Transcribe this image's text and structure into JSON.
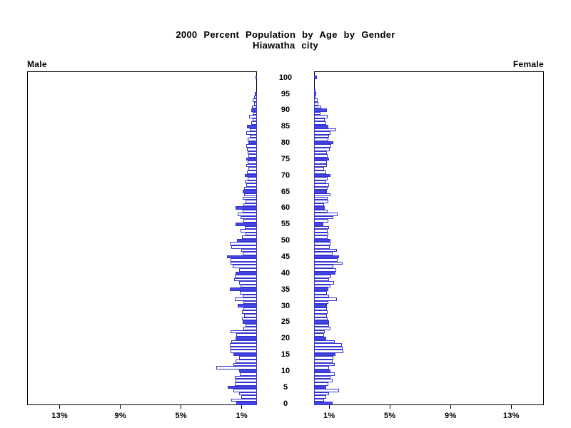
{
  "title": {
    "line1": "2000 Percent Population by Age by Gender",
    "line2": "Hiawatha city"
  },
  "panels": {
    "left_label": "Male",
    "right_label": "Female"
  },
  "colors": {
    "bar_fill": "#4747e8",
    "bar_outline": "#3434cf",
    "axis": "#000000"
  },
  "chart_data": {
    "type": "bar",
    "subtype": "population-pyramid",
    "title": "2000 Percent Population by Age by Gender",
    "subtitle": "Hiawatha city",
    "unit": "percent of population",
    "age_min": 0,
    "age_max": 100,
    "highlight_every": 5,
    "age_axis_ticks": [
      0,
      5,
      10,
      15,
      20,
      25,
      30,
      35,
      40,
      45,
      50,
      55,
      60,
      65,
      70,
      75,
      80,
      85,
      90,
      95,
      100
    ],
    "pct_tick_values": [
      1,
      5,
      9,
      13
    ],
    "pct_tick_labels": [
      "1%",
      "5%",
      "9%",
      "13%"
    ],
    "xlim": [
      0,
      15.15
    ],
    "legend": "bars at ages divisible by 5 are filled blue; other ages are white with blue outline",
    "series": [
      {
        "name": "Male",
        "side": "left",
        "values": [
          1.35,
          1.7,
          1.05,
          1.2,
          1.55,
          1.95,
          1.45,
          1.4,
          1.45,
          1.15,
          1.2,
          2.7,
          1.55,
          1.4,
          1.2,
          1.55,
          1.75,
          1.75,
          1.8,
          1.7,
          1.4,
          1.35,
          1.75,
          0.9,
          0.75,
          0.95,
          1.0,
          0.85,
          1.0,
          0.9,
          1.25,
          0.9,
          1.45,
          0.95,
          1.15,
          1.8,
          1.1,
          1.2,
          1.5,
          1.45,
          1.4,
          1.2,
          1.6,
          1.75,
          1.75,
          2.0,
          0.95,
          1.05,
          1.7,
          1.8,
          1.3,
          1.0,
          0.75,
          1.1,
          0.8,
          1.4,
          0.9,
          1.1,
          1.25,
          0.95,
          1.4,
          0.9,
          0.75,
          0.95,
          0.85,
          0.95,
          0.85,
          0.7,
          0.8,
          0.6,
          0.8,
          0.65,
          0.55,
          0.7,
          0.6,
          0.7,
          0.55,
          0.6,
          0.65,
          0.7,
          0.55,
          0.6,
          0.45,
          0.7,
          0.45,
          0.65,
          0.4,
          0.3,
          0.5,
          0.3,
          0.4,
          0.35,
          0.2,
          0.3,
          0.2,
          0.15,
          0,
          0,
          0,
          0,
          0.1
        ]
      },
      {
        "name": "Female",
        "side": "right",
        "values": [
          1.2,
          0.65,
          0.8,
          1.0,
          1.65,
          0.8,
          0.95,
          1.2,
          1.1,
          1.35,
          1.1,
          1.0,
          1.35,
          1.2,
          1.25,
          1.4,
          1.95,
          1.9,
          1.85,
          1.35,
          0.8,
          0.65,
          0.7,
          1.1,
          1.0,
          1.0,
          0.9,
          0.85,
          0.9,
          0.85,
          0.85,
          0.95,
          1.5,
          1.0,
          0.85,
          0.95,
          1.1,
          1.3,
          1.0,
          1.15,
          1.4,
          1.45,
          1.25,
          1.9,
          1.55,
          1.65,
          1.2,
          1.5,
          1.05,
          1.1,
          1.1,
          0.9,
          0.95,
          0.9,
          1.0,
          0.6,
          0.95,
          1.25,
          1.55,
          0.9,
          0.7,
          0.65,
          0.95,
          0.9,
          1.1,
          0.85,
          0.9,
          1.0,
          0.8,
          0.9,
          1.1,
          0.8,
          0.65,
          0.85,
          0.85,
          1.0,
          0.9,
          0.85,
          1.05,
          1.15,
          1.25,
          0.95,
          1.0,
          1.1,
          1.45,
          0.95,
          0.8,
          0.7,
          0.9,
          0.4,
          0.85,
          0.45,
          0.3,
          0.25,
          0.1,
          0.15,
          0.1,
          0,
          0,
          0,
          0.2
        ]
      }
    ]
  }
}
